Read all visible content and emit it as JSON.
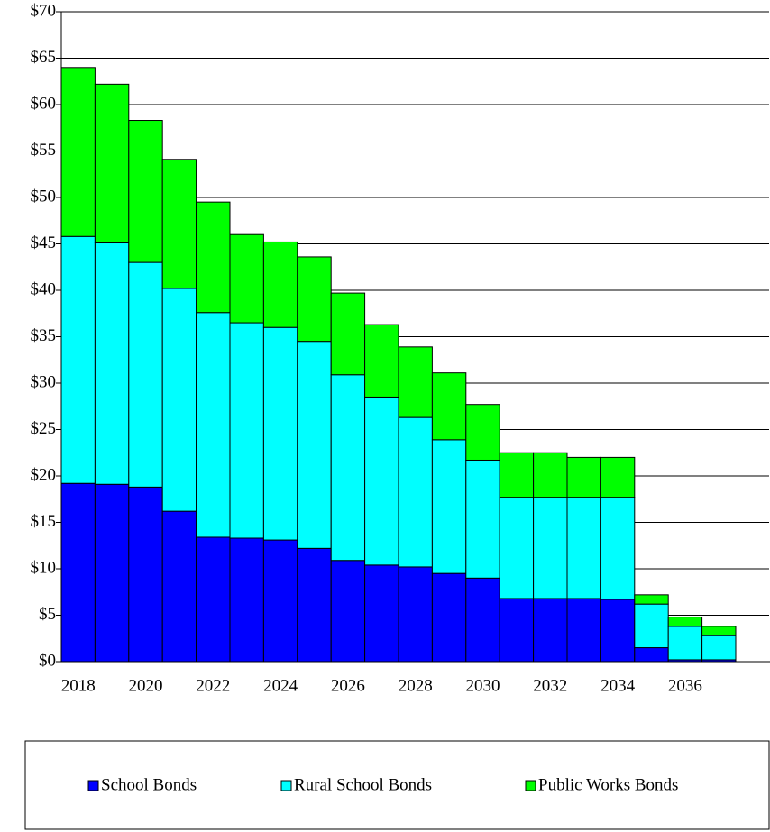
{
  "chart_data": {
    "type": "stacked-bar",
    "categories": [
      "2018",
      null,
      "2020",
      null,
      "2022",
      null,
      "2024",
      null,
      "2026",
      null,
      "2028",
      null,
      "2030",
      null,
      "2032",
      null,
      "2034",
      null,
      "2036",
      null,
      null
    ],
    "series": [
      {
        "name": "School Bonds",
        "color": "#0000ff",
        "values": [
          19.2,
          19.1,
          18.8,
          16.2,
          13.4,
          13.3,
          13.1,
          12.2,
          10.9,
          10.4,
          10.2,
          9.5,
          9.0,
          6.8,
          6.8,
          6.8,
          6.7,
          1.5,
          0.2,
          0.2,
          null
        ]
      },
      {
        "name": "Rural School Bonds",
        "color": "#00ffff",
        "values": [
          26.6,
          26.0,
          24.2,
          24.0,
          24.2,
          23.2,
          22.9,
          22.3,
          20.0,
          18.1,
          16.1,
          14.4,
          12.7,
          10.9,
          10.9,
          10.9,
          11.0,
          4.7,
          3.6,
          2.6,
          null
        ]
      },
      {
        "name": "Public Works Bonds",
        "color": "#00ff00",
        "values": [
          18.2,
          17.1,
          15.3,
          13.9,
          11.9,
          9.5,
          9.2,
          9.1,
          8.8,
          7.8,
          7.6,
          7.2,
          6.0,
          4.8,
          4.8,
          4.3,
          4.3,
          1.0,
          1.0,
          1.0,
          null
        ]
      }
    ],
    "ylim": [
      0,
      70
    ],
    "yticks": [
      {
        "value": 0,
        "label": "$0"
      },
      {
        "value": 5,
        "label": "$5"
      },
      {
        "value": 10,
        "label": "$10"
      },
      {
        "value": 15,
        "label": "$15"
      },
      {
        "value": 20,
        "label": "$20"
      },
      {
        "value": 25,
        "label": "$25"
      },
      {
        "value": 30,
        "label": "$30"
      },
      {
        "value": 35,
        "label": "$35"
      },
      {
        "value": 40,
        "label": "$40"
      },
      {
        "value": 45,
        "label": "$45"
      },
      {
        "value": 50,
        "label": "$50"
      },
      {
        "value": 55,
        "label": "$55"
      },
      {
        "value": 60,
        "label": "$60"
      },
      {
        "value": 65,
        "label": "$65"
      },
      {
        "value": 70,
        "label": "$70"
      }
    ],
    "grid": true
  }
}
